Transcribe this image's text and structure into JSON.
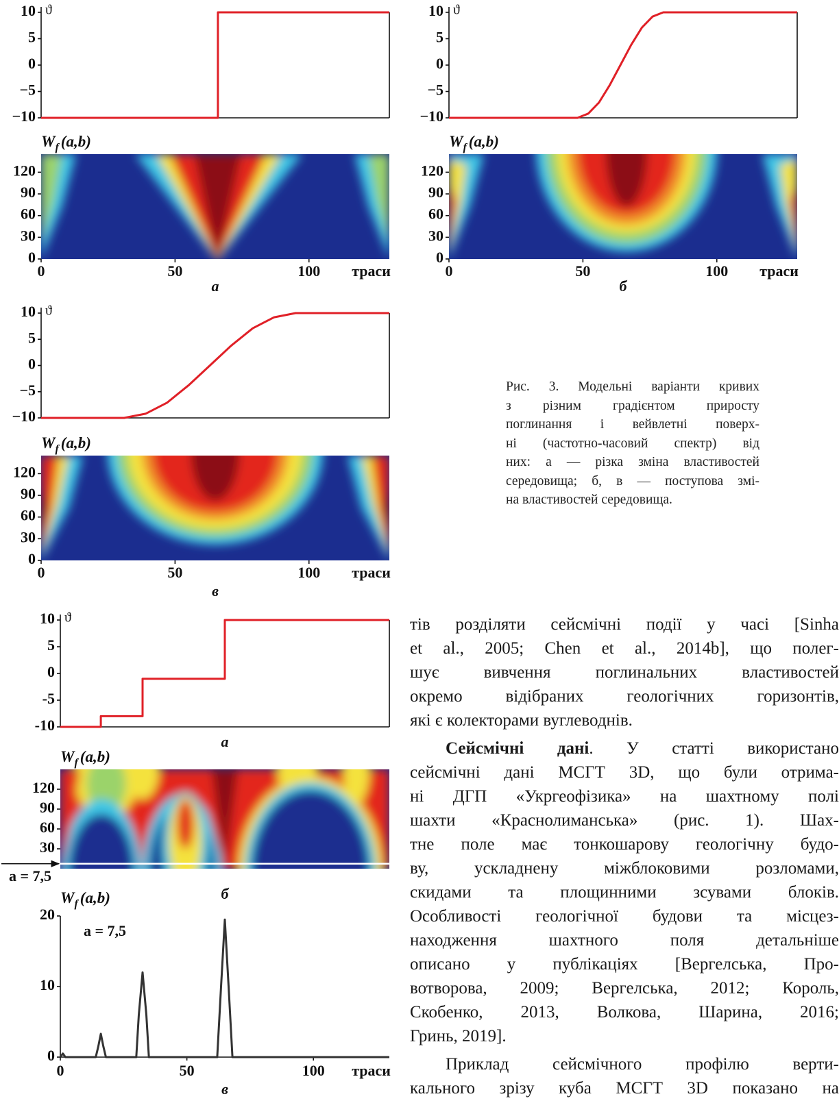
{
  "figure3": {
    "panels": [
      {
        "curve": {
          "y_label": "ϑ",
          "ylim": [
            -10,
            10
          ],
          "yticks": [
            10,
            5,
            0,
            {
              "value": -5,
              "label": "−5"
            },
            {
              "value": -10,
              "label": "−10"
            }
          ],
          "xlim": [
            0,
            130
          ],
          "x": [
            0,
            66,
            66,
            130
          ],
          "values": [
            -10,
            -10,
            10,
            10
          ],
          "color": "#e02027"
        },
        "heatmap": {
          "label": {
            "main": "W",
            "sub": "f",
            "args": "(a,b)"
          },
          "ylim": [
            0,
            145
          ],
          "yticks": [
            120,
            90,
            60,
            30,
            0
          ],
          "xlim": [
            0,
            130
          ],
          "xticks": [
            0,
            50,
            100
          ],
          "x_label": "траси"
        },
        "label": "а"
      },
      {
        "curve": {
          "y_label": "ϑ",
          "ylim": [
            -10,
            10
          ],
          "yticks": [
            10,
            5,
            0,
            {
              "value": -5,
              "label": "−5"
            },
            {
              "value": -10,
              "label": "−10"
            }
          ],
          "xlim": [
            0,
            130
          ],
          "x": [
            0,
            48,
            52,
            56,
            60,
            64,
            68,
            72,
            76,
            80,
            130
          ],
          "values": [
            -10,
            -10,
            -9.2,
            -7.1,
            -3.8,
            0,
            3.8,
            7.1,
            9.2,
            10,
            10
          ],
          "color": "#e02027"
        },
        "heatmap": {
          "label": {
            "main": "W",
            "sub": "f",
            "args": "(a,b)"
          },
          "ylim": [
            0,
            145
          ],
          "yticks": [
            120,
            90,
            60,
            30,
            0
          ],
          "xlim": [
            0,
            130
          ],
          "xticks": [
            0,
            50,
            100
          ],
          "x_label": "траси"
        },
        "label": "б"
      },
      {
        "curve": {
          "y_label": "ϑ",
          "ylim": [
            -10,
            10
          ],
          "yticks": [
            10,
            5,
            0,
            {
              "value": -5,
              "label": "−5"
            },
            {
              "value": -10,
              "label": "−10"
            }
          ],
          "xlim": [
            0,
            130
          ],
          "x": [
            0,
            31,
            39,
            47,
            55,
            63,
            71,
            79,
            87,
            95,
            130
          ],
          "values": [
            -10,
            -10,
            -9.2,
            -7.1,
            -3.8,
            0,
            3.8,
            7.1,
            9.2,
            10,
            10
          ],
          "color": "#e02027"
        },
        "heatmap": {
          "label": {
            "main": "W",
            "sub": "f",
            "args": "(a,b)"
          },
          "ylim": [
            0,
            145
          ],
          "yticks": [
            120,
            90,
            60,
            30,
            0
          ],
          "xlim": [
            0,
            130
          ],
          "xticks": [
            0,
            50,
            100
          ],
          "x_label": "траси"
        },
        "label": "в"
      }
    ],
    "caption": [
      "Рис. 3. Модельні варіанти кривих",
      "з різним градієнтом приросту",
      "поглинання і вейвлетні поверх-",
      "ні (частотно-часовий спектр) від",
      "них: а — різка зміна властивостей",
      "середовища; б, в — поступова змі-",
      "на властивостей середовища."
    ]
  },
  "figure4": {
    "curve": {
      "y_label": "ϑ",
      "ylim": [
        -10,
        10
      ],
      "yticks": [
        10,
        5,
        0,
        -5,
        -10
      ],
      "xlim": [
        0,
        130
      ],
      "x": [
        0,
        16,
        16,
        32.5,
        32.5,
        65,
        65,
        130
      ],
      "values": [
        -10,
        -10,
        -8,
        -8,
        -1,
        -1,
        10,
        10
      ],
      "color": "#e02027",
      "label": "а"
    },
    "heatmap": {
      "label": {
        "main": "W",
        "sub": "f",
        "args": "(a,b)"
      },
      "ylim": [
        0,
        150
      ],
      "yticks": [
        120,
        90,
        60,
        30
      ],
      "xlim": [
        0,
        130
      ],
      "line": {
        "value": 7.5,
        "label": "a = 7,5"
      },
      "panel_label": "б"
    },
    "profile": {
      "label": {
        "main": "W",
        "sub": "f",
        "args": "(a,b)"
      },
      "annotation": "a = 7,5",
      "ylim": [
        0,
        20
      ],
      "yticks": [
        20,
        10,
        0
      ],
      "xlim": [
        0,
        130
      ],
      "xticks": [
        0,
        50,
        100
      ],
      "x_label": "траси",
      "x": [
        0,
        1,
        2,
        14,
        15,
        16,
        17,
        18,
        30,
        31,
        32.5,
        34,
        35,
        62,
        63.5,
        65,
        66.5,
        68,
        130
      ],
      "values": [
        0,
        0.5,
        0,
        0,
        1.5,
        3.3,
        1.5,
        0,
        0,
        6,
        12,
        6,
        0,
        0,
        10,
        19.5,
        10,
        0,
        0
      ],
      "color": "#333333",
      "panel_label": "в"
    }
  },
  "text": {
    "paragraphs": [
      {
        "lines": [
          "тів розділяти сейсмічні події у часі [Sinha",
          "et al., 2005; Chen et al., 2014b], що полег-",
          "шує вивчення поглинальних властивостей",
          "окремо відібраних геологічних горизонтів,",
          "які є колекторами вуглеводнів."
        ]
      },
      {
        "heading": "Сейсмічні дані",
        "lines": [
          ". У статті використано",
          "сейсмічні дані МСГТ 3D, що були отрима-",
          "ні ДГП «Укргеофізика» на шахтному полі",
          "шахти «Краснолиманська» (рис. 1). Шах-",
          "тне поле має тонкошарову геологічну будо-",
          "ву, ускладнену міжблоковими розломами,",
          "скидами та площинними зсувами блоків.",
          "Особливості геологічної будови та місцез-",
          "находження шахтного поля детальніше",
          "описано у публікаціях [Вергелська, Про-",
          "вотворова, 2009; Вергелська, 2012; Король,",
          "Скобенко, 2013, Волкова, Шарина, 2016;",
          "Гринь, 2019]."
        ]
      },
      {
        "lines": [
          "Приклад сейсмічного профілю верти-",
          "кального зрізу куба МСГТ 3D показано на"
        ]
      }
    ]
  }
}
